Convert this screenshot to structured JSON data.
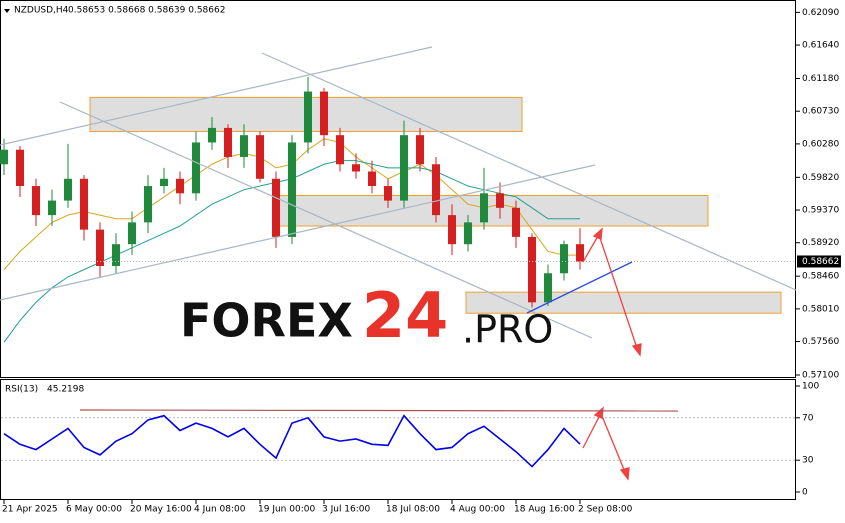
{
  "chart_data": {
    "type": "candlestick",
    "symbol": "NZDUSD,H4",
    "quote": "0.58653 0.58668 0.58639 0.58662",
    "last_price": 0.58662,
    "watermark": {
      "main": "FOREX",
      "accent": "24",
      "suffix": ".PRO"
    },
    "categories": [
      "21 Apr 2025",
      null,
      null,
      null,
      "6 May 00:00",
      null,
      null,
      null,
      "20 May 16:00",
      null,
      null,
      null,
      "4 Jun 08:00",
      null,
      null,
      null,
      "19 Jun 00:00",
      null,
      null,
      null,
      "3 Jul 16:00",
      null,
      null,
      null,
      "18 Jul 08:00",
      null,
      null,
      null,
      "4 Aug 00:00",
      null,
      null,
      null,
      "18 Aug 16:00",
      null,
      null,
      null,
      "2 Sep 08:00"
    ],
    "open": [
      0.6,
      0.602,
      0.597,
      0.593,
      0.595,
      0.598,
      0.591,
      0.586,
      0.589,
      0.592,
      0.597,
      0.598,
      0.596,
      0.603,
      0.605,
      0.601,
      0.604,
      0.598,
      0.59,
      0.603,
      0.61,
      0.604,
      0.6,
      0.599,
      0.597,
      0.595,
      0.604,
      0.6,
      0.593,
      0.589,
      0.592,
      0.596,
      0.594,
      0.59,
      0.581,
      0.585,
      0.589
    ],
    "high": [
      0.6035,
      0.6025,
      0.598,
      0.5965,
      0.6028,
      0.5985,
      0.592,
      0.5905,
      0.5935,
      0.5985,
      0.5995,
      0.599,
      0.6045,
      0.6065,
      0.6055,
      0.6055,
      0.6045,
      0.599,
      0.604,
      0.612,
      0.6105,
      0.605,
      0.6015,
      0.6005,
      0.598,
      0.606,
      0.605,
      0.601,
      0.5945,
      0.593,
      0.5995,
      0.5975,
      0.595,
      0.5905,
      0.5862,
      0.5895,
      0.5912
    ],
    "low": [
      0.5985,
      0.5955,
      0.5915,
      0.5915,
      0.594,
      0.5895,
      0.5845,
      0.585,
      0.5875,
      0.5905,
      0.596,
      0.5945,
      0.595,
      0.602,
      0.5995,
      0.5995,
      0.5975,
      0.5885,
      0.589,
      0.6015,
      0.6025,
      0.599,
      0.598,
      0.596,
      0.594,
      0.594,
      0.599,
      0.592,
      0.5875,
      0.588,
      0.591,
      0.5925,
      0.5885,
      0.5803,
      0.5805,
      0.584,
      0.5855
    ],
    "close": [
      0.602,
      0.597,
      0.593,
      0.595,
      0.598,
      0.591,
      0.586,
      0.589,
      0.592,
      0.597,
      0.598,
      0.596,
      0.603,
      0.605,
      0.601,
      0.604,
      0.598,
      0.59,
      0.603,
      0.61,
      0.604,
      0.6,
      0.599,
      0.597,
      0.595,
      0.604,
      0.6,
      0.593,
      0.589,
      0.592,
      0.596,
      0.594,
      0.59,
      0.581,
      0.585,
      0.589,
      0.5866
    ],
    "up_color": "#1f8a3c",
    "down_color": "#d42020",
    "moving_averages": [
      {
        "color": "#d9a520",
        "values": [
          0.5855,
          0.588,
          0.59,
          0.592,
          0.593,
          0.5935,
          0.593,
          0.5925,
          0.5925,
          0.594,
          0.5955,
          0.597,
          0.5985,
          0.6,
          0.601,
          0.6015,
          0.601,
          0.5995,
          0.6,
          0.602,
          0.6035,
          0.603,
          0.601,
          0.5995,
          0.598,
          0.599,
          0.6,
          0.5985,
          0.5965,
          0.5945,
          0.594,
          0.5945,
          0.594,
          0.591,
          0.588,
          0.5875,
          0.5875
        ]
      },
      {
        "color": "#20a090",
        "values": [
          0.5755,
          0.5785,
          0.581,
          0.583,
          0.5845,
          0.5855,
          0.5865,
          0.5875,
          0.5885,
          0.5895,
          0.5905,
          0.5915,
          0.593,
          0.5945,
          0.5955,
          0.5965,
          0.597,
          0.5975,
          0.598,
          0.599,
          0.6,
          0.6005,
          0.6005,
          0.6,
          0.5995,
          0.5995,
          0.5995,
          0.599,
          0.598,
          0.597,
          0.5965,
          0.596,
          0.5955,
          0.594,
          0.5925,
          0.5925,
          0.5925
        ]
      }
    ],
    "zones": [
      [
        0.6045,
        0.6092
      ],
      [
        0.5915,
        0.5957
      ],
      [
        0.5795,
        0.5824
      ]
    ],
    "ylim": [
      0.571,
      0.6226
    ],
    "yticks": [
      {
        "value": 0.6209,
        "label": "0.62090"
      },
      {
        "value": 0.6164,
        "label": "0.61640"
      },
      {
        "value": 0.6118,
        "label": "0.61180"
      },
      {
        "value": 0.6073,
        "label": "0.60730"
      },
      {
        "value": 0.6028,
        "label": "0.60280"
      },
      {
        "value": 0.5982,
        "label": "0.59820"
      },
      {
        "value": 0.5937,
        "label": "0.59370"
      },
      {
        "value": 0.5892,
        "label": "0.58920"
      },
      {
        "value": 0.5846,
        "label": "0.58460"
      },
      {
        "value": 0.5801,
        "label": "0.58010"
      },
      {
        "value": 0.5756,
        "label": "0.57560"
      },
      {
        "value": 0.571,
        "label": "0.57100"
      }
    ],
    "rsi": {
      "name": "RSI(13)",
      "color": "#0000ee",
      "values": [
        55,
        45,
        40,
        50,
        60,
        42,
        35,
        48,
        55,
        68,
        72,
        58,
        65,
        60,
        52,
        60,
        45,
        32,
        65,
        70,
        52,
        48,
        50,
        45,
        44,
        72,
        55,
        40,
        42,
        55,
        62,
        50,
        38,
        24,
        40,
        60,
        45.2198
      ],
      "ylim": [
        0,
        100
      ],
      "yticks": [
        100,
        70,
        30,
        0
      ]
    }
  }
}
